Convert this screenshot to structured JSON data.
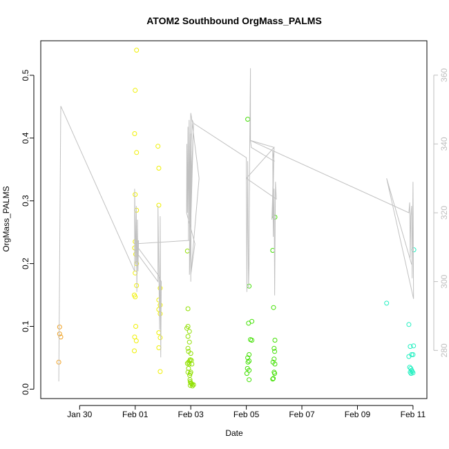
{
  "chart_data": {
    "type": "scatter",
    "title": "ATOM2 Southbound OrgMass_PALMS",
    "xlabel": "Date",
    "ylabel": "OrgMass_PALMS",
    "x_tick_labels": [
      "Jan 30",
      "Feb 01",
      "Feb 03",
      "Feb 05",
      "Feb 07",
      "Feb 09",
      "Feb 11"
    ],
    "x_tick_days": [
      30,
      32,
      34,
      36,
      38,
      40,
      42
    ],
    "xlim": [
      28.6,
      42.5
    ],
    "ylim": [
      -0.015,
      0.555
    ],
    "y_ticks": [
      "0.0",
      "0.1",
      "0.2",
      "0.3",
      "0.4",
      "0.5"
    ],
    "y2lim": [
      266,
      370
    ],
    "y2_ticks": [
      "280",
      "300",
      "320",
      "340",
      "360"
    ],
    "grid": false,
    "series": [
      {
        "kind": "points",
        "color": "#f0a020",
        "points": [
          [
            29.25,
            0.043
          ],
          [
            29.28,
            0.099
          ],
          [
            29.28,
            0.088
          ],
          [
            29.32,
            0.083
          ]
        ]
      },
      {
        "kind": "points",
        "color": "#f0f000",
        "points": [
          [
            32.05,
            0.54
          ],
          [
            32.0,
            0.476
          ],
          [
            31.98,
            0.407
          ],
          [
            32.05,
            0.377
          ],
          [
            32.0,
            0.31
          ],
          [
            32.05,
            0.285
          ],
          [
            32.0,
            0.235
          ],
          [
            31.98,
            0.225
          ],
          [
            32.02,
            0.215
          ],
          [
            32.05,
            0.2
          ],
          [
            32.0,
            0.185
          ],
          [
            32.05,
            0.165
          ],
          [
            31.97,
            0.15
          ],
          [
            32.0,
            0.147
          ],
          [
            32.02,
            0.1
          ],
          [
            31.98,
            0.083
          ],
          [
            32.04,
            0.077
          ],
          [
            31.97,
            0.061
          ],
          [
            32.82,
            0.387
          ],
          [
            32.85,
            0.352
          ],
          [
            32.85,
            0.293
          ],
          [
            32.9,
            0.161
          ],
          [
            32.85,
            0.142
          ],
          [
            32.9,
            0.134
          ],
          [
            32.85,
            0.127
          ],
          [
            32.9,
            0.12
          ],
          [
            32.85,
            0.09
          ],
          [
            32.9,
            0.082
          ],
          [
            32.85,
            0.066
          ],
          [
            32.9,
            0.028
          ]
        ]
      },
      {
        "kind": "points",
        "color": "#90e000",
        "points": [
          [
            34.0,
            0.057
          ],
          [
            33.98,
            0.047
          ],
          [
            34.02,
            0.046
          ],
          [
            34.04,
            0.04
          ],
          [
            34.0,
            0.027
          ],
          [
            33.98,
            0.025
          ],
          [
            33.97,
            0.015
          ],
          [
            34.0,
            0.01
          ],
          [
            34.02,
            0.009
          ],
          [
            34.05,
            0.008
          ],
          [
            34.1,
            0.007
          ],
          [
            34.06,
            0.005
          ],
          [
            33.98,
            0.006
          ],
          [
            33.88,
            0.22
          ],
          [
            33.9,
            0.128
          ],
          [
            33.9,
            0.1
          ],
          [
            33.86,
            0.097
          ],
          [
            33.95,
            0.092
          ],
          [
            33.9,
            0.084
          ],
          [
            33.95,
            0.075
          ],
          [
            33.9,
            0.065
          ],
          [
            33.92,
            0.06
          ],
          [
            33.96,
            0.045
          ],
          [
            33.92,
            0.043
          ],
          [
            33.88,
            0.041
          ],
          [
            33.94,
            0.04
          ],
          [
            33.92,
            0.033
          ],
          [
            33.9,
            0.027
          ],
          [
            33.96,
            0.022
          ],
          [
            33.98,
            0.012
          ]
        ]
      },
      {
        "kind": "points",
        "color": "#40e000",
        "points": [
          [
            36.05,
            0.43
          ],
          [
            36.1,
            0.164
          ],
          [
            36.08,
            0.105
          ],
          [
            36.2,
            0.108
          ],
          [
            36.15,
            0.079
          ],
          [
            36.2,
            0.078
          ],
          [
            36.1,
            0.055
          ],
          [
            36.05,
            0.05
          ],
          [
            36.1,
            0.045
          ],
          [
            36.06,
            0.043
          ],
          [
            36.04,
            0.033
          ],
          [
            36.1,
            0.03
          ],
          [
            36.02,
            0.025
          ],
          [
            36.1,
            0.015
          ],
          [
            36.95,
            0.221
          ],
          [
            37.03,
            0.274
          ],
          [
            36.98,
            0.13
          ],
          [
            37.03,
            0.078
          ],
          [
            37.0,
            0.065
          ],
          [
            37.02,
            0.06
          ],
          [
            37.0,
            0.048
          ],
          [
            36.96,
            0.043
          ],
          [
            37.03,
            0.04
          ],
          [
            37.0,
            0.027
          ],
          [
            37.02,
            0.025
          ],
          [
            36.97,
            0.017
          ],
          [
            36.95,
            0.016
          ]
        ]
      },
      {
        "kind": "points",
        "color": "#20f0c0",
        "points": [
          [
            41.05,
            0.137
          ],
          [
            41.85,
            0.103
          ],
          [
            42.03,
            0.222
          ],
          [
            41.9,
            0.068
          ],
          [
            42.02,
            0.069
          ],
          [
            41.95,
            0.055
          ],
          [
            42.0,
            0.055
          ],
          [
            41.85,
            0.052
          ],
          [
            41.88,
            0.035
          ],
          [
            41.92,
            0.033
          ],
          [
            41.95,
            0.03
          ],
          [
            41.97,
            0.028
          ],
          [
            41.9,
            0.027
          ],
          [
            42.0,
            0.026
          ],
          [
            41.93,
            0.025
          ]
        ]
      },
      {
        "kind": "line",
        "color": "#c0c0c0",
        "axis": "right",
        "points": [
          [
            29.25,
            271
          ],
          [
            29.32,
            351
          ],
          [
            31.98,
            303
          ],
          [
            31.98,
            327
          ],
          [
            32.02,
            305
          ],
          [
            32.04,
            322
          ],
          [
            32.06,
            297
          ],
          [
            32.08,
            318
          ],
          [
            32.1,
            303
          ],
          [
            32.12,
            312
          ],
          [
            32.0,
            309
          ],
          [
            32.82,
            300
          ],
          [
            32.82,
            322
          ],
          [
            32.88,
            286
          ],
          [
            32.9,
            319
          ],
          [
            32.92,
            278
          ],
          [
            32.94,
            300
          ],
          [
            32.82,
            302
          ],
          [
            32.0,
            311
          ],
          [
            34.0,
            312
          ],
          [
            33.98,
            331
          ],
          [
            34.0,
            300
          ],
          [
            34.02,
            340
          ],
          [
            34.05,
            347
          ],
          [
            34.1,
            346
          ],
          [
            33.95,
            302
          ],
          [
            33.96,
            321
          ],
          [
            33.98,
            342
          ],
          [
            34.0,
            349
          ],
          [
            34.02,
            348
          ],
          [
            34.3,
            330
          ],
          [
            34.0,
            302
          ],
          [
            34.15,
            311
          ],
          [
            33.85,
            320
          ],
          [
            33.86,
            340
          ],
          [
            33.88,
            320
          ],
          [
            33.9,
            345
          ],
          [
            33.92,
            312
          ],
          [
            33.94,
            347
          ],
          [
            33.96,
            315
          ],
          [
            33.98,
            343
          ],
          [
            34.0,
            317
          ],
          [
            34.02,
            343
          ],
          [
            34.0,
            325
          ],
          [
            34.1,
            346
          ],
          [
            36.0,
            336
          ],
          [
            36.0,
            330
          ],
          [
            36.02,
            297
          ],
          [
            36.05,
            335
          ],
          [
            36.08,
            298
          ],
          [
            36.1,
            305
          ],
          [
            36.12,
            337
          ],
          [
            36.15,
            362
          ],
          [
            36.15,
            341
          ],
          [
            36.18,
            339
          ],
          [
            37.0,
            335
          ],
          [
            36.95,
            338
          ],
          [
            36.97,
            313
          ],
          [
            37.0,
            327
          ],
          [
            37.02,
            296
          ],
          [
            37.05,
            329
          ],
          [
            37.08,
            324
          ],
          [
            36.0,
            330
          ],
          [
            37.0,
            339
          ],
          [
            36.92,
            318
          ],
          [
            36.95,
            320
          ],
          [
            37.0,
            339
          ],
          [
            36.15,
            341
          ],
          [
            41.85,
            320
          ],
          [
            41.88,
            323
          ],
          [
            41.9,
            307
          ],
          [
            41.92,
            319
          ],
          [
            41.95,
            322
          ],
          [
            41.97,
            301
          ],
          [
            42.0,
            329
          ],
          [
            42.02,
            295
          ],
          [
            41.05,
            330
          ],
          [
            41.95,
            305
          ]
        ]
      }
    ]
  }
}
